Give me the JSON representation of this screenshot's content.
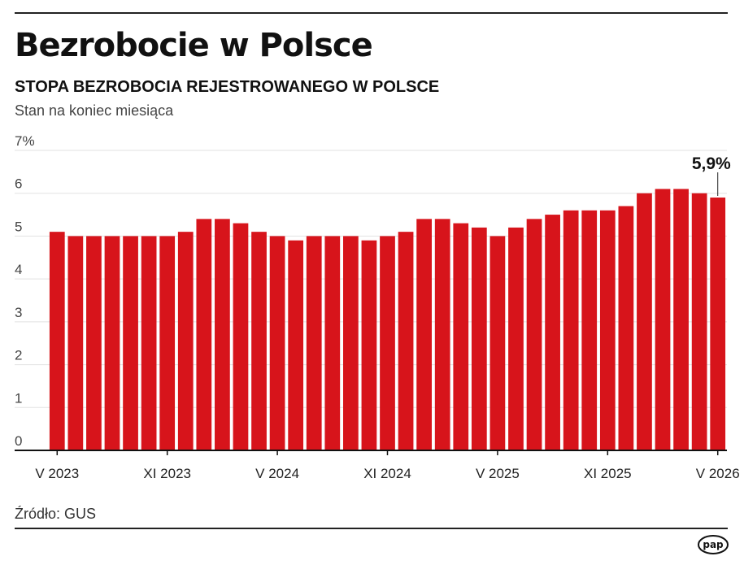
{
  "header": {
    "title": "Bezrobocie w Polsce",
    "subtitle": "STOPA BEZROBOCIA REJESTROWANEGO W POLSCE",
    "note": "Stan na koniec miesiąca"
  },
  "footer": {
    "source": "Źródło: GUS",
    "logo_text": "pap"
  },
  "colors": {
    "bar": "#d7141b",
    "grid": "#e2e2e2",
    "axis": "#111111",
    "label": "#444444"
  },
  "chart_data": {
    "type": "bar",
    "categories": [
      "V 2023",
      "VI 2023",
      "VII 2023",
      "VIII 2023",
      "IX 2023",
      "X 2023",
      "XI 2023",
      "XII 2023",
      "I 2024",
      "II 2024",
      "III 2024",
      "IV 2024",
      "V 2024",
      "VI 2024",
      "VII 2024",
      "VIII 2024",
      "IX 2024",
      "X 2024",
      "XI 2024",
      "XII 2024",
      "I 2025",
      "II 2025",
      "III 2025",
      "IV 2025",
      "V 2025",
      "VI 2025",
      "VII 2025",
      "VIII 2025",
      "IX 2025",
      "X 2025",
      "XI 2025",
      "XII 2025",
      "I 2026",
      "II 2026",
      "III 2026",
      "IV 2026",
      "V 2026"
    ],
    "values": [
      5.1,
      5.0,
      5.0,
      5.0,
      5.0,
      5.0,
      5.0,
      5.1,
      5.4,
      5.4,
      5.3,
      5.1,
      5.0,
      4.9,
      5.0,
      5.0,
      5.0,
      4.9,
      5.0,
      5.1,
      5.4,
      5.4,
      5.3,
      5.2,
      5.0,
      5.2,
      5.4,
      5.5,
      5.6,
      5.6,
      5.6,
      5.7,
      6.0,
      6.1,
      6.1,
      6.0,
      5.9
    ],
    "x_tick_labels": [
      "V 2023",
      "XI 2023",
      "V 2024",
      "XI 2024",
      "V 2025",
      "XI 2025",
      "V 2026"
    ],
    "y_tick_labels": [
      "0",
      "1",
      "2",
      "3",
      "4",
      "5",
      "6",
      "7%"
    ],
    "ylim": [
      0,
      7
    ],
    "grid": true,
    "annotation": {
      "label": "5,9%",
      "category": "V 2026"
    },
    "title": "STOPA BEZROBOCIA REJESTROWANEGO W POLSCE",
    "xlabel": "",
    "ylabel": ""
  }
}
